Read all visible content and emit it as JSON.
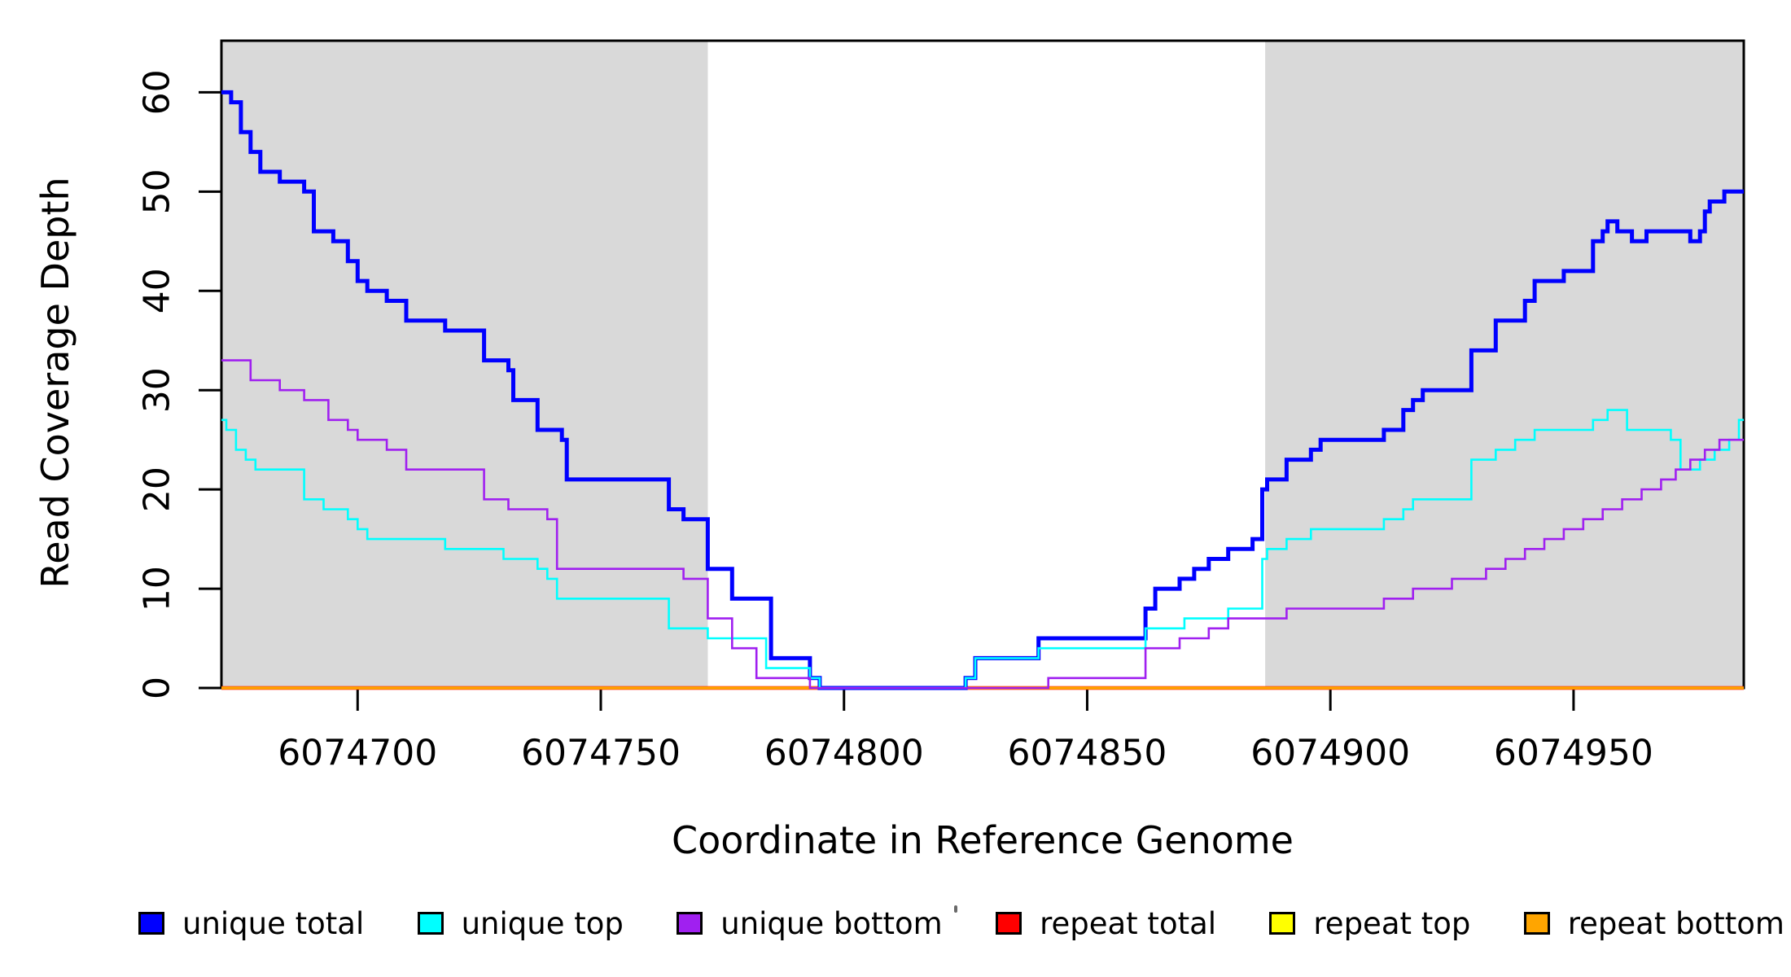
{
  "chart_data": {
    "type": "line",
    "step": true,
    "title": "",
    "xlabel": "Coordinate in Reference Genome",
    "ylabel": "Read Coverage Depth",
    "xlim": [
      6074672,
      6074985
    ],
    "ylim": [
      0,
      65.2
    ],
    "x_ticks": [
      6074700,
      6074750,
      6074800,
      6074850,
      6074900,
      6074950
    ],
    "y_ticks": [
      0,
      10,
      20,
      30,
      40,
      50,
      60
    ],
    "grid": false,
    "legend_position": "bottom",
    "shaded_region_color": "#D9D9D9",
    "shaded_regions": [
      {
        "x0": 6074672,
        "x1": 6074772
      },
      {
        "x0": 6074886.6,
        "x1": 6074985
      }
    ],
    "series": [
      {
        "name": "repeat total",
        "color": "#FF0000",
        "width": 4.5,
        "points": [
          [
            6074672,
            0
          ]
        ]
      },
      {
        "name": "repeat top",
        "color": "#FFFF00",
        "width": 3.2,
        "points": [
          [
            6074672,
            0
          ]
        ]
      },
      {
        "name": "repeat bottom",
        "color": "#FFA500",
        "width": 3.2,
        "points": [
          [
            6074672,
            0
          ]
        ]
      },
      {
        "name": "unique total",
        "color": "#0000FF",
        "width": 5,
        "points": [
          [
            6074672,
            60
          ],
          [
            6074674,
            59
          ],
          [
            6074676,
            56
          ],
          [
            6074678,
            54
          ],
          [
            6074680,
            52
          ],
          [
            6074684,
            51
          ],
          [
            6074689,
            50
          ],
          [
            6074691,
            46
          ],
          [
            6074695,
            45
          ],
          [
            6074698,
            43
          ],
          [
            6074700,
            41
          ],
          [
            6074702,
            40
          ],
          [
            6074706,
            39
          ],
          [
            6074710,
            37
          ],
          [
            6074718,
            36
          ],
          [
            6074726,
            33
          ],
          [
            6074731,
            32
          ],
          [
            6074732,
            29
          ],
          [
            6074737,
            26
          ],
          [
            6074742,
            25
          ],
          [
            6074743,
            21
          ],
          [
            6074764,
            18
          ],
          [
            6074767,
            17
          ],
          [
            6074772,
            12
          ],
          [
            6074777,
            9
          ],
          [
            6074785,
            3
          ],
          [
            6074793,
            1
          ],
          [
            6074795,
            0
          ],
          [
            6074825,
            1
          ],
          [
            6074827,
            3
          ],
          [
            6074840,
            5
          ],
          [
            6074862,
            8
          ],
          [
            6074864,
            10
          ],
          [
            6074869,
            11
          ],
          [
            6074872,
            12
          ],
          [
            6074875,
            13
          ],
          [
            6074879,
            14
          ],
          [
            6074884,
            15
          ],
          [
            6074886,
            20
          ],
          [
            6074887,
            21
          ],
          [
            6074891,
            23
          ],
          [
            6074896,
            24
          ],
          [
            6074898,
            25
          ],
          [
            6074911,
            26
          ],
          [
            6074915,
            28
          ],
          [
            6074917,
            29
          ],
          [
            6074919,
            30
          ],
          [
            6074929,
            34
          ],
          [
            6074934,
            37
          ],
          [
            6074940,
            39
          ],
          [
            6074942,
            41
          ],
          [
            6074948,
            42
          ],
          [
            6074954,
            45
          ],
          [
            6074956,
            46
          ],
          [
            6074957,
            47
          ],
          [
            6074959,
            46
          ],
          [
            6074962,
            45
          ],
          [
            6074965,
            46
          ],
          [
            6074974,
            45
          ],
          [
            6074976,
            46
          ],
          [
            6074977,
            48
          ],
          [
            6074978,
            49
          ],
          [
            6074981,
            50
          ]
        ]
      },
      {
        "name": "unique top",
        "color": "#00FFFF",
        "width": 2.6,
        "points": [
          [
            6074672,
            27
          ],
          [
            6074673,
            26
          ],
          [
            6074675,
            24
          ],
          [
            6074677,
            23
          ],
          [
            6074679,
            22
          ],
          [
            6074689,
            19
          ],
          [
            6074693,
            18
          ],
          [
            6074698,
            17
          ],
          [
            6074700,
            16
          ],
          [
            6074702,
            15
          ],
          [
            6074718,
            14
          ],
          [
            6074730,
            13
          ],
          [
            6074737,
            12
          ],
          [
            6074739,
            11
          ],
          [
            6074741,
            9
          ],
          [
            6074764,
            6
          ],
          [
            6074772,
            5
          ],
          [
            6074784,
            2
          ],
          [
            6074793,
            1
          ],
          [
            6074795,
            0
          ],
          [
            6074825,
            1
          ],
          [
            6074827,
            3
          ],
          [
            6074840,
            4
          ],
          [
            6074862,
            6
          ],
          [
            6074870,
            7
          ],
          [
            6074879,
            8
          ],
          [
            6074886,
            13
          ],
          [
            6074887,
            14
          ],
          [
            6074891,
            15
          ],
          [
            6074896,
            16
          ],
          [
            6074911,
            17
          ],
          [
            6074915,
            18
          ],
          [
            6074917,
            19
          ],
          [
            6074929,
            23
          ],
          [
            6074934,
            24
          ],
          [
            6074938,
            25
          ],
          [
            6074942,
            26
          ],
          [
            6074954,
            27
          ],
          [
            6074957,
            28
          ],
          [
            6074961,
            26
          ],
          [
            6074970,
            25
          ],
          [
            6074972,
            22
          ],
          [
            6074976,
            23
          ],
          [
            6074979,
            24
          ],
          [
            6074982,
            25
          ],
          [
            6074984,
            27
          ]
        ]
      },
      {
        "name": "unique bottom",
        "color": "#A020F0",
        "width": 2.6,
        "points": [
          [
            6074672,
            33
          ],
          [
            6074678,
            31
          ],
          [
            6074684,
            30
          ],
          [
            6074689,
            29
          ],
          [
            6074694,
            27
          ],
          [
            6074698,
            26
          ],
          [
            6074700,
            25
          ],
          [
            6074706,
            24
          ],
          [
            6074710,
            22
          ],
          [
            6074726,
            19
          ],
          [
            6074731,
            18
          ],
          [
            6074739,
            17
          ],
          [
            6074741,
            12
          ],
          [
            6074767,
            11
          ],
          [
            6074772,
            7
          ],
          [
            6074777,
            4
          ],
          [
            6074782,
            1
          ],
          [
            6074793,
            0
          ],
          [
            6074842,
            1
          ],
          [
            6074862,
            4
          ],
          [
            6074869,
            5
          ],
          [
            6074875,
            6
          ],
          [
            6074879,
            7
          ],
          [
            6074891,
            8
          ],
          [
            6074911,
            9
          ],
          [
            6074917,
            10
          ],
          [
            6074925,
            11
          ],
          [
            6074932,
            12
          ],
          [
            6074936,
            13
          ],
          [
            6074940,
            14
          ],
          [
            6074944,
            15
          ],
          [
            6074948,
            16
          ],
          [
            6074952,
            17
          ],
          [
            6074956,
            18
          ],
          [
            6074960,
            19
          ],
          [
            6074964,
            20
          ],
          [
            6074968,
            21
          ],
          [
            6074971,
            22
          ],
          [
            6074974,
            23
          ],
          [
            6074977,
            24
          ],
          [
            6074980,
            25
          ]
        ]
      }
    ]
  },
  "legend": {
    "entries": [
      {
        "label": "unique total",
        "color": "#0000FF"
      },
      {
        "label": "unique top",
        "color": "#00FFFF"
      },
      {
        "label": "unique bottom",
        "color": "#A020F0"
      },
      {
        "label": "repeat total",
        "color": "#FF0000"
      },
      {
        "label": "repeat top",
        "color": "#FFFF00"
      },
      {
        "label": "repeat bottom",
        "color": "#FFA500"
      }
    ]
  },
  "axis_text_color": "#000000"
}
